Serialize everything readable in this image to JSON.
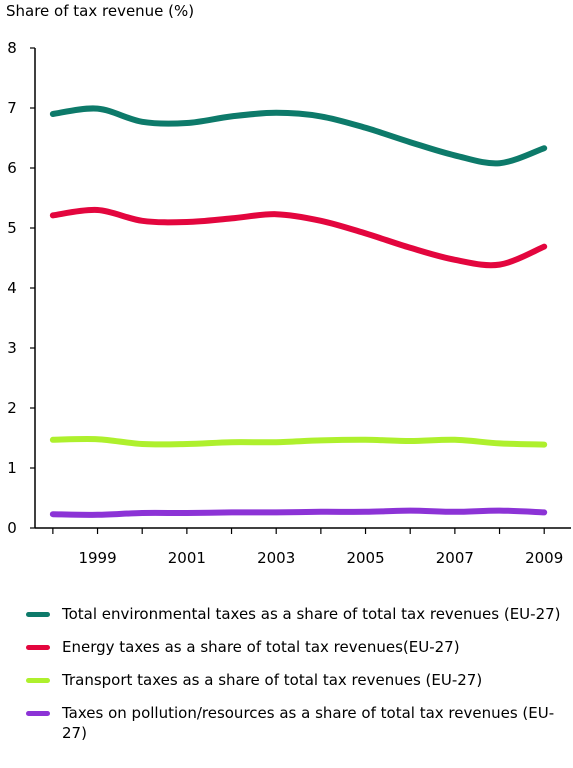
{
  "chart_data": {
    "type": "line",
    "ylabel": "Share of tax revenue (%)",
    "xlabel": "",
    "x": [
      1998,
      1999,
      2000,
      2001,
      2002,
      2003,
      2004,
      2005,
      2006,
      2007,
      2008,
      2009
    ],
    "xticks": [
      "1999",
      "2001",
      "2003",
      "2005",
      "2007",
      "2009"
    ],
    "yticks": [
      "0",
      "1",
      "2",
      "3",
      "4",
      "5",
      "6",
      "7",
      "8"
    ],
    "ylim": [
      0,
      8
    ],
    "xlim": [
      1997.6,
      2009.6
    ],
    "grid": false,
    "legend_position": "bottom",
    "series": [
      {
        "name": "Total environmental taxes as a share of total tax revenues (EU-27)",
        "color": "#0d7a6a",
        "values": [
          6.9,
          6.99,
          6.77,
          6.75,
          6.86,
          6.92,
          6.86,
          6.67,
          6.43,
          6.21,
          6.08,
          6.33
        ]
      },
      {
        "name": "Energy taxes as a share of total tax revenues(EU-27)",
        "color": "#e3063e",
        "values": [
          5.21,
          5.3,
          5.12,
          5.1,
          5.16,
          5.23,
          5.12,
          4.91,
          4.67,
          4.47,
          4.39,
          4.69
        ]
      },
      {
        "name": "Transport taxes as a share of total tax revenues (EU-27)",
        "color": "#aef02d",
        "values": [
          1.47,
          1.48,
          1.4,
          1.4,
          1.43,
          1.43,
          1.46,
          1.47,
          1.45,
          1.47,
          1.41,
          1.39
        ]
      },
      {
        "name": "Taxes on pollution/resources as a share of total tax revenues (EU-27)",
        "color": "#8c33d6",
        "values": [
          0.23,
          0.22,
          0.25,
          0.25,
          0.26,
          0.26,
          0.27,
          0.27,
          0.29,
          0.27,
          0.29,
          0.26
        ]
      }
    ]
  }
}
